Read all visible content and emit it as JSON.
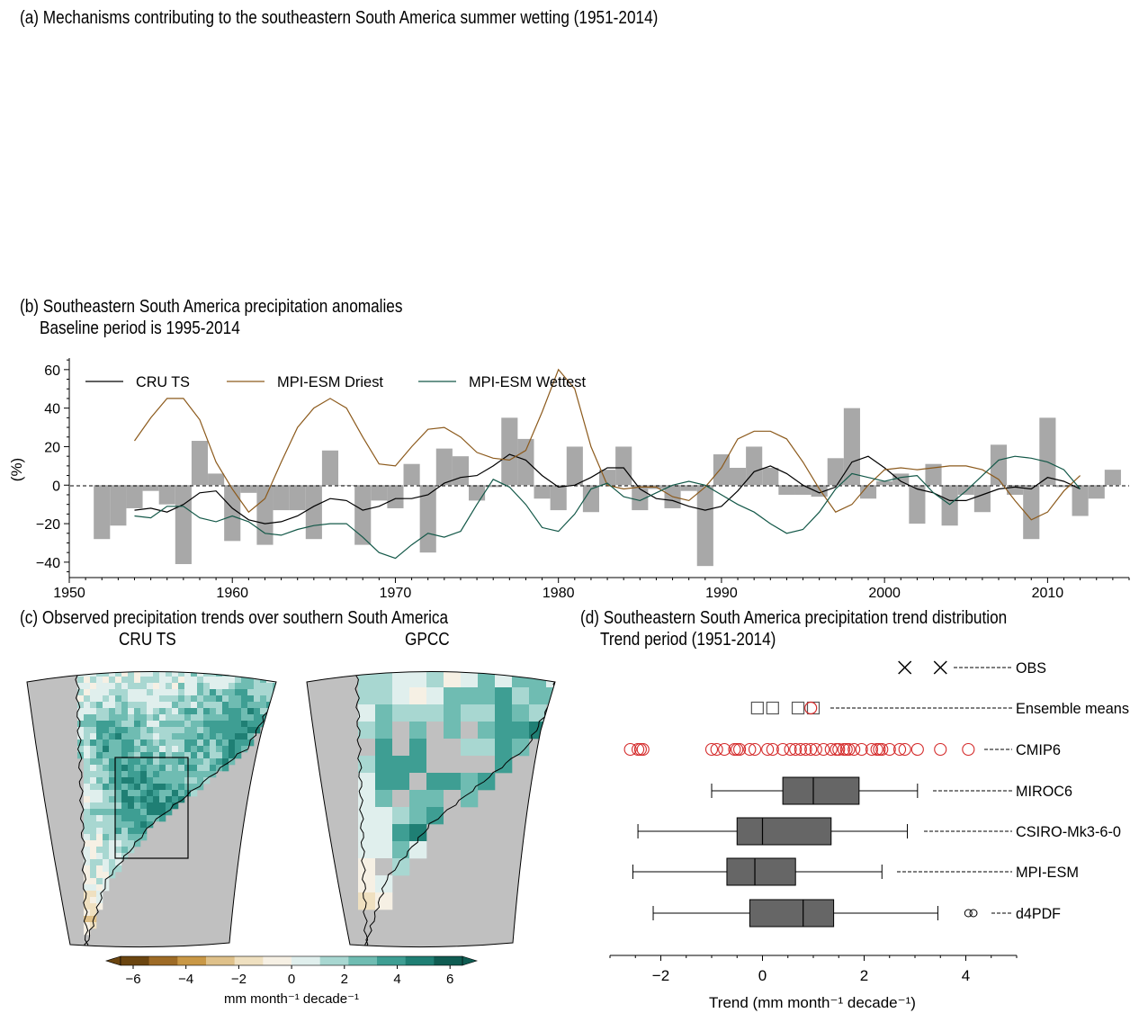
{
  "panel_a": {
    "title": "(a) Mechanisms contributing to the southeastern South America summer wetting (1951-2014)"
  },
  "panel_b": {
    "title": "(b) Southeastern South America precipitation anomalies",
    "subtitle": "Baseline period is 1995-2014"
  },
  "panel_c": {
    "title": "(c) Observed precipitation trends over southern South America",
    "map_left_title": "CRU TS",
    "map_right_title": "GPCC",
    "colorbar_label": "mm month⁻¹ decade⁻¹",
    "colorbar_ticks": [
      "−6",
      "−4",
      "−2",
      "0",
      "2",
      "4",
      "6"
    ]
  },
  "panel_d": {
    "title": "(d) Southeastern South America precipitation trend distribution",
    "subtitle": "Trend period (1951-2014)"
  },
  "colors": {
    "bars": "#a8a8a8",
    "cru": "#000000",
    "driest": "#8c5a1c",
    "wettest": "#135848",
    "cmip6": "#d42a2a",
    "box": "#666666",
    "land": "#c0c0c0"
  },
  "chart_data": [
    {
      "type": "bar",
      "panel": "b",
      "ylabel": "(%)",
      "xlim": [
        1950,
        2015
      ],
      "ylim": [
        -48,
        66
      ],
      "yticks": [
        -40,
        -20,
        0,
        20,
        40,
        60
      ],
      "xticks": [
        1950,
        1960,
        1970,
        1980,
        1990,
        2000,
        2010
      ],
      "bar_years": [
        1952,
        1953,
        1954,
        1955,
        1956,
        1957,
        1958,
        1959,
        1960,
        1961,
        1962,
        1963,
        1964,
        1965,
        1966,
        1967,
        1968,
        1969,
        1970,
        1971,
        1972,
        1973,
        1974,
        1975,
        1976,
        1977,
        1978,
        1979,
        1980,
        1981,
        1982,
        1983,
        1984,
        1985,
        1986,
        1987,
        1988,
        1989,
        1990,
        1991,
        1992,
        1993,
        1994,
        1995,
        1996,
        1997,
        1998,
        1999,
        2000,
        2001,
        2002,
        2003,
        2004,
        2005,
        2006,
        2007,
        2008,
        2009,
        2010,
        2011,
        2012,
        2013,
        2014
      ],
      "bar_values": [
        -28,
        -21,
        -12,
        -3,
        -10,
        -41,
        23,
        6,
        -29,
        -4,
        -31,
        -13,
        -13,
        -28,
        18,
        0,
        -31,
        -8,
        -12,
        11,
        -35,
        19,
        15,
        -8,
        -1,
        35,
        24,
        -7,
        -13,
        20,
        -14,
        8,
        20,
        -13,
        -2,
        -12,
        -3,
        -42,
        16,
        9,
        20,
        9,
        -5,
        -5,
        -6,
        14,
        40,
        -7,
        2,
        6,
        -20,
        11,
        -21,
        -5,
        -14,
        21,
        -5,
        -28,
        35,
        -1,
        -16,
        -7,
        8
      ],
      "series": [
        {
          "name": "CRU TS",
          "x": [
            1954,
            1955,
            1956,
            1957,
            1958,
            1959,
            1960,
            1961,
            1962,
            1963,
            1964,
            1965,
            1966,
            1967,
            1968,
            1969,
            1970,
            1971,
            1972,
            1973,
            1974,
            1975,
            1976,
            1977,
            1978,
            1979,
            1980,
            1981,
            1982,
            1983,
            1984,
            1985,
            1986,
            1987,
            1988,
            1989,
            1990,
            1991,
            1992,
            1993,
            1994,
            1995,
            1996,
            1997,
            1998,
            1999,
            2000,
            2001,
            2002,
            2003,
            2004,
            2005,
            2006,
            2007,
            2008,
            2009,
            2010,
            2011,
            2012
          ],
          "y": [
            -13,
            -12,
            -14,
            -10,
            -4,
            -3,
            -12,
            -18,
            -20,
            -19,
            -16,
            -11,
            -7,
            -8,
            -13,
            -11,
            -7,
            -7,
            -5,
            1,
            4,
            5,
            10,
            16,
            13,
            5,
            -1,
            0,
            4,
            9,
            9,
            -2,
            -7,
            -8,
            -11,
            -13,
            -11,
            -3,
            7,
            10,
            6,
            0,
            -4,
            -1,
            12,
            15,
            9,
            2,
            -2,
            -4,
            -8,
            -8,
            -5,
            -2,
            -1,
            -2,
            4,
            2,
            -2
          ]
        },
        {
          "name": "MPI-ESM Driest",
          "x": [
            1954,
            1955,
            1956,
            1957,
            1958,
            1959,
            1960,
            1961,
            1962,
            1963,
            1964,
            1965,
            1966,
            1967,
            1968,
            1969,
            1970,
            1971,
            1972,
            1973,
            1974,
            1975,
            1976,
            1977,
            1978,
            1979,
            1980,
            1981,
            1982,
            1983,
            1984,
            1985,
            1986,
            1987,
            1988,
            1989,
            1990,
            1991,
            1992,
            1993,
            1994,
            1995,
            1996,
            1997,
            1998,
            1999,
            2000,
            2001,
            2002,
            2003,
            2004,
            2005,
            2006,
            2007,
            2008,
            2009,
            2010,
            2011,
            2012
          ],
          "y": [
            23,
            35,
            45,
            45,
            34,
            12,
            -2,
            -14,
            -7,
            12,
            30,
            40,
            45,
            40,
            25,
            11,
            10,
            20,
            29,
            30,
            25,
            17,
            14,
            13,
            18,
            38,
            60,
            50,
            20,
            0,
            -2,
            -1,
            -1,
            -6,
            -8,
            -1,
            9,
            24,
            28,
            28,
            24,
            12,
            -2,
            -14,
            -10,
            0,
            8,
            9,
            8,
            9,
            10,
            10,
            8,
            3,
            -8,
            -18,
            -14,
            -3,
            5
          ]
        },
        {
          "name": "MPI-ESM Wettest",
          "x": [
            1954,
            1955,
            1956,
            1957,
            1958,
            1959,
            1960,
            1961,
            1962,
            1963,
            1964,
            1965,
            1966,
            1967,
            1968,
            1969,
            1970,
            1971,
            1972,
            1973,
            1974,
            1975,
            1976,
            1977,
            1978,
            1979,
            1980,
            1981,
            1982,
            1983,
            1984,
            1985,
            1986,
            1987,
            1988,
            1989,
            1990,
            1991,
            1992,
            1993,
            1994,
            1995,
            1996,
            1997,
            1998,
            1999,
            2000,
            2001,
            2002,
            2003,
            2004,
            2005,
            2006,
            2007,
            2008,
            2009,
            2010,
            2011,
            2012
          ],
          "y": [
            -16,
            -17,
            -11,
            -11,
            -17,
            -19,
            -16,
            -19,
            -25,
            -26,
            -23,
            -21,
            -20,
            -20,
            -27,
            -35,
            -38,
            -31,
            -25,
            -27,
            -24,
            -10,
            3,
            -1,
            -10,
            -22,
            -24,
            -15,
            -2,
            1,
            -6,
            -8,
            -4,
            0,
            2,
            0,
            -5,
            -10,
            -14,
            -20,
            -25,
            -23,
            -14,
            -2,
            6,
            4,
            2,
            4,
            5,
            -4,
            -10,
            -3,
            5,
            13,
            15,
            14,
            12,
            8,
            -2
          ]
        }
      ]
    },
    {
      "type": "box",
      "panel": "d",
      "xlabel": "Trend (mm month⁻¹ decade⁻¹)",
      "xlim": [
        -3,
        5
      ],
      "xticks": [
        -2,
        0,
        2,
        4
      ],
      "categories": [
        "OBS",
        "Ensemble means",
        "CMIP6",
        "MIROC6",
        "CSIRO-Mk3-6-0",
        "MPI-ESM",
        "d4PDF"
      ],
      "obs_points": [
        2.8,
        3.5
      ],
      "ensemble_means_grey": [
        -0.1,
        0.2,
        0.7,
        1.0
      ],
      "ensemble_means_red": [
        0.95
      ],
      "cmip6_points": [
        -2.6,
        -2.45,
        -2.4,
        -2.35,
        -1.0,
        -0.9,
        -0.75,
        -0.55,
        -0.5,
        -0.45,
        -0.25,
        -0.15,
        0.1,
        0.2,
        0.4,
        0.55,
        0.65,
        0.75,
        0.85,
        0.95,
        1.05,
        1.2,
        1.35,
        1.45,
        1.5,
        1.6,
        1.65,
        1.7,
        1.8,
        1.95,
        2.15,
        2.25,
        2.3,
        2.35,
        2.5,
        2.7,
        2.8,
        3.05,
        3.5,
        4.05
      ],
      "boxes": [
        {
          "name": "MIROC6",
          "whisker_low": -1.0,
          "q1": 0.4,
          "median": 1.0,
          "q3": 1.9,
          "whisker_high": 3.05,
          "fliers": []
        },
        {
          "name": "CSIRO-Mk3-6-0",
          "whisker_low": -2.45,
          "q1": -0.5,
          "median": 0.0,
          "q3": 1.35,
          "whisker_high": 2.85,
          "fliers": []
        },
        {
          "name": "MPI-ESM",
          "whisker_low": -2.55,
          "q1": -0.7,
          "median": -0.15,
          "q3": 0.65,
          "whisker_high": 2.35,
          "fliers": []
        },
        {
          "name": "d4PDF",
          "whisker_low": -2.15,
          "q1": -0.25,
          "median": 0.8,
          "q3": 1.4,
          "whisker_high": 3.45,
          "fliers": [
            4.05,
            4.15
          ]
        }
      ]
    }
  ]
}
